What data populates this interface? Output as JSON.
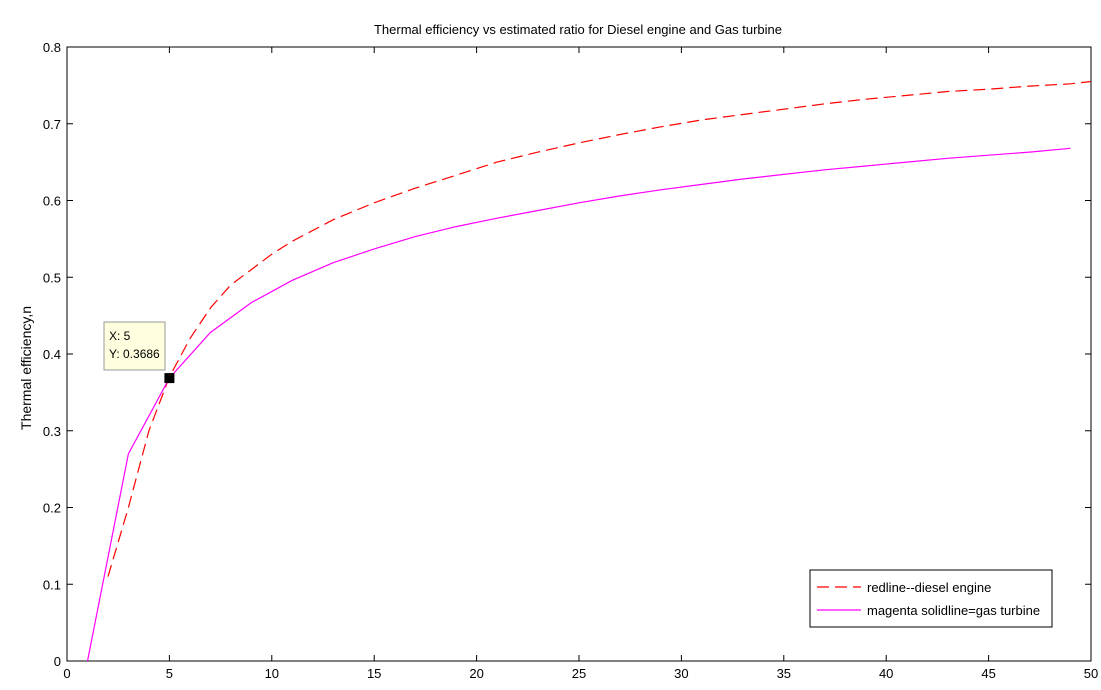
{
  "chart_data": {
    "type": "line",
    "title": "Thermal efficiency vs estimated ratio for Diesel engine and Gas turbine",
    "xlabel": "",
    "ylabel": "Thermal efficiency,n",
    "xlim": [
      0,
      50
    ],
    "ylim": [
      0,
      0.8
    ],
    "xticks": [
      "0",
      "5",
      "10",
      "15",
      "20",
      "25",
      "30",
      "35",
      "40",
      "45",
      "50"
    ],
    "yticks": [
      "0",
      "0.1",
      "0.2",
      "0.3",
      "0.4",
      "0.5",
      "0.6",
      "0.7",
      "0.8"
    ],
    "grid": false,
    "legend_position": "bottom-right",
    "series": [
      {
        "name": "redline--diesel engine",
        "color": "#ff0000",
        "style": "dashed",
        "x": [
          2,
          3,
          4,
          5,
          6,
          7,
          8,
          9,
          10,
          11,
          13,
          15,
          17,
          19,
          21,
          23,
          25,
          27,
          29,
          31,
          33,
          35,
          37,
          39,
          41,
          43,
          45,
          47,
          49,
          50
        ],
        "y": [
          0.11,
          0.2,
          0.3,
          0.37,
          0.42,
          0.46,
          0.49,
          0.51,
          0.53,
          0.547,
          0.575,
          0.597,
          0.616,
          0.633,
          0.65,
          0.663,
          0.675,
          0.686,
          0.696,
          0.705,
          0.712,
          0.719,
          0.726,
          0.732,
          0.737,
          0.742,
          0.745,
          0.749,
          0.752,
          0.755
        ]
      },
      {
        "name": "magenta solidline=gas turbine",
        "color": "#ff00ff",
        "style": "solid",
        "x": [
          1,
          3,
          5,
          7,
          9,
          11,
          13,
          15,
          17,
          19,
          21,
          23,
          25,
          27,
          29,
          31,
          33,
          35,
          37,
          39,
          41,
          43,
          45,
          47,
          49
        ],
        "y": [
          0.0,
          0.27,
          0.3686,
          0.428,
          0.467,
          0.496,
          0.519,
          0.537,
          0.553,
          0.566,
          0.577,
          0.587,
          0.597,
          0.606,
          0.614,
          0.621,
          0.628,
          0.634,
          0.64,
          0.645,
          0.65,
          0.655,
          0.659,
          0.663,
          0.668
        ]
      }
    ],
    "datatip": {
      "x_label": "X: 5",
      "y_label": "Y: 0.3686",
      "x": 5,
      "y": 0.3686
    }
  }
}
